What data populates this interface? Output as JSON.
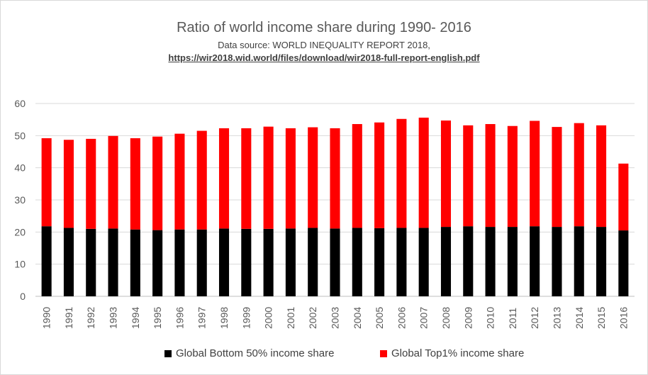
{
  "chart_data": {
    "type": "bar",
    "stacked": true,
    "title": "Ratio of world income share during 1990- 2016",
    "subtitle": "Data source: WORLD INEQUALITY REPORT 2018,",
    "source_link": "https://wir2018.wid.world/files/download/wir2018-full-report-english.pdf",
    "categories": [
      "1990",
      "1991",
      "1992",
      "1993",
      "1994",
      "1995",
      "1996",
      "1997",
      "1998",
      "1999",
      "2000",
      "2001",
      "2002",
      "2003",
      "2004",
      "2005",
      "2006",
      "2007",
      "2008",
      "2009",
      "2010",
      "2011",
      "2012",
      "2013",
      "2014",
      "2015",
      "2016"
    ],
    "series": [
      {
        "name": "Global Bottom 50% income share",
        "color": "#000000",
        "values": [
          21.8,
          21.3,
          21.0,
          21.1,
          20.8,
          20.6,
          20.8,
          20.8,
          21.1,
          21.0,
          21.0,
          21.1,
          21.3,
          21.1,
          21.3,
          21.2,
          21.3,
          21.3,
          21.6,
          21.8,
          21.6,
          21.6,
          21.8,
          21.6,
          21.8,
          21.6,
          20.5
        ]
      },
      {
        "name": "Global Top1% income share",
        "color": "#ff0000",
        "values": [
          27.4,
          27.4,
          28.0,
          28.8,
          28.4,
          29.1,
          29.8,
          30.7,
          31.2,
          31.3,
          31.8,
          31.2,
          31.3,
          31.2,
          32.3,
          32.9,
          33.9,
          34.3,
          33.1,
          31.4,
          32.0,
          31.4,
          32.8,
          31.1,
          32.1,
          31.6,
          20.8
        ]
      }
    ],
    "ylim": [
      0,
      60
    ],
    "yticks": [
      0,
      10,
      20,
      30,
      40,
      50,
      60
    ],
    "grid": true,
    "legend": "bottom"
  }
}
